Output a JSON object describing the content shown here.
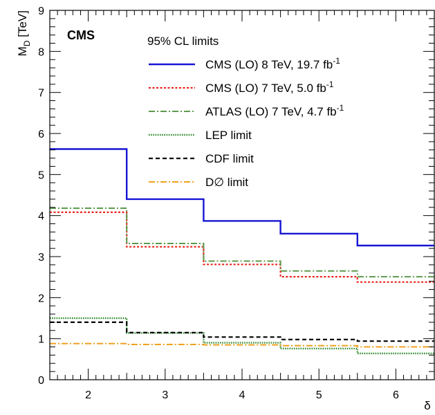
{
  "chart_data": {
    "type": "line",
    "step": true,
    "experiment": "CMS",
    "legend_title": "95% CL limits",
    "xlabel": "δ",
    "ylabel_main": "M",
    "ylabel_sub": "D",
    "ylabel_unit": " [TeV]",
    "xlim": [
      1.5,
      6.5
    ],
    "ylim": [
      0,
      9
    ],
    "xticks": [
      2,
      3,
      4,
      5,
      6
    ],
    "yticks": [
      0,
      1,
      2,
      3,
      4,
      5,
      6,
      7,
      8,
      9
    ],
    "x": [
      2,
      3,
      4,
      5,
      6
    ],
    "legend_position": "top-right",
    "series": [
      {
        "name": "CMS (LO) 8 TeV, 19.7 fb",
        "name_sup": "-1",
        "values": [
          5.62,
          4.4,
          3.87,
          3.56,
          3.27
        ],
        "color": "#1515d4",
        "style": "solid"
      },
      {
        "name": "CMS (LO) 7 TeV, 5.0 fb",
        "name_sup": "-1",
        "values": [
          4.08,
          3.24,
          2.81,
          2.51,
          2.38
        ],
        "color": "#e8261c",
        "style": "dotted"
      },
      {
        "name": "ATLAS (LO) 7 TeV, 4.7 fb",
        "name_sup": "-1",
        "values": [
          4.18,
          3.32,
          2.89,
          2.65,
          2.51
        ],
        "color": "#5c9a4a",
        "style": "dashdot"
      },
      {
        "name": "LEP limit",
        "values": [
          1.5,
          1.14,
          0.9,
          0.76,
          0.64
        ],
        "color": "#2f8a2f",
        "style": "densedot"
      },
      {
        "name": "CDF limit",
        "values": [
          1.4,
          1.15,
          1.04,
          0.98,
          0.94
        ],
        "color": "#000000",
        "style": "dashed"
      },
      {
        "name": "D∅ limit",
        "values": [
          0.88,
          0.86,
          0.85,
          0.83,
          0.8
        ],
        "color": "#f0a020",
        "style": "dashdot"
      }
    ]
  }
}
